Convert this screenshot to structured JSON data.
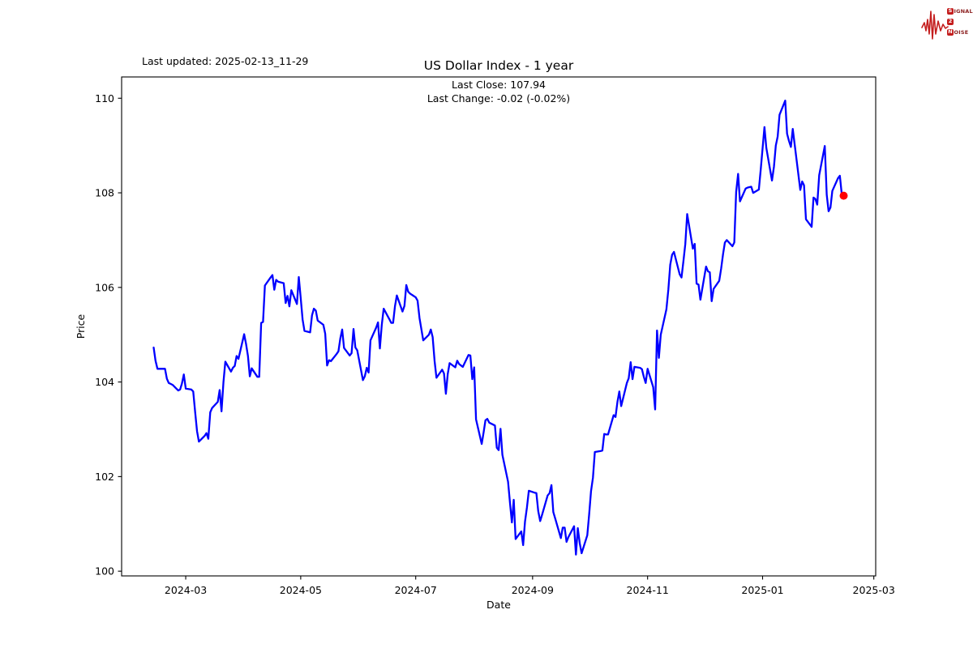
{
  "header": {
    "last_updated": "Last updated: 2025-02-13_11-29"
  },
  "logo": {
    "rows": [
      {
        "boxed": "S",
        "rest": "IGNAL"
      },
      {
        "boxed": "2",
        "rest": ""
      },
      {
        "boxed": "N",
        "rest": "OISE"
      }
    ],
    "accent_color": "#c41e1e"
  },
  "chart_data": {
    "type": "line",
    "title": "US Dollar Index - 1 year",
    "subtitle": [
      "Last Close: 107.94",
      "Last Change: -0.02 (-0.02%)"
    ],
    "xlabel": "Date",
    "ylabel": "Price",
    "grid": false,
    "legend": "none",
    "line_color": "#0000ff",
    "marker_color": "#ff0000",
    "axis_color": "#000000",
    "xlim": [
      "2024-01-27",
      "2025-03-02"
    ],
    "ylim": [
      99.9,
      110.45
    ],
    "y_ticks": [
      100,
      102,
      104,
      106,
      108,
      110
    ],
    "x_ticks": [
      {
        "label": "2024-03",
        "date": "2024-03-01"
      },
      {
        "label": "2024-05",
        "date": "2024-05-01"
      },
      {
        "label": "2024-07",
        "date": "2024-07-01"
      },
      {
        "label": "2024-09",
        "date": "2024-09-01"
      },
      {
        "label": "2024-11",
        "date": "2024-11-01"
      },
      {
        "label": "2025-01",
        "date": "2025-01-01"
      },
      {
        "label": "2025-03",
        "date": "2025-03-01"
      }
    ],
    "series": [
      {
        "name": "US Dollar Index",
        "points": [
          [
            "2024-02-13",
            104.73
          ],
          [
            "2024-02-14",
            104.45
          ],
          [
            "2024-02-15",
            104.28
          ],
          [
            "2024-02-16",
            104.28
          ],
          [
            "2024-02-19",
            104.28
          ],
          [
            "2024-02-20",
            104.07
          ],
          [
            "2024-02-21",
            103.98
          ],
          [
            "2024-02-22",
            103.96
          ],
          [
            "2024-02-23",
            103.94
          ],
          [
            "2024-02-26",
            103.82
          ],
          [
            "2024-02-27",
            103.84
          ],
          [
            "2024-02-28",
            103.97
          ],
          [
            "2024-02-29",
            104.16
          ],
          [
            "2024-03-01",
            103.86
          ],
          [
            "2024-03-04",
            103.84
          ],
          [
            "2024-03-05",
            103.8
          ],
          [
            "2024-03-06",
            103.36
          ],
          [
            "2024-03-07",
            102.96
          ],
          [
            "2024-03-08",
            102.74
          ],
          [
            "2024-03-11",
            102.86
          ],
          [
            "2024-03-12",
            102.92
          ],
          [
            "2024-03-13",
            102.8
          ],
          [
            "2024-03-14",
            103.36
          ],
          [
            "2024-03-15",
            103.45
          ],
          [
            "2024-03-18",
            103.58
          ],
          [
            "2024-03-19",
            103.83
          ],
          [
            "2024-03-20",
            103.38
          ],
          [
            "2024-03-21",
            104.0
          ],
          [
            "2024-03-22",
            104.43
          ],
          [
            "2024-03-25",
            104.22
          ],
          [
            "2024-03-26",
            104.3
          ],
          [
            "2024-03-27",
            104.34
          ],
          [
            "2024-03-28",
            104.55
          ],
          [
            "2024-03-29",
            104.49
          ],
          [
            "2024-04-01",
            105.01
          ],
          [
            "2024-04-02",
            104.8
          ],
          [
            "2024-04-03",
            104.55
          ],
          [
            "2024-04-04",
            104.12
          ],
          [
            "2024-04-05",
            104.29
          ],
          [
            "2024-04-08",
            104.11
          ],
          [
            "2024-04-09",
            104.11
          ],
          [
            "2024-04-10",
            105.25
          ],
          [
            "2024-04-11",
            105.27
          ],
          [
            "2024-04-12",
            106.04
          ],
          [
            "2024-04-15",
            106.21
          ],
          [
            "2024-04-16",
            106.26
          ],
          [
            "2024-04-17",
            105.95
          ],
          [
            "2024-04-18",
            106.16
          ],
          [
            "2024-04-19",
            106.12
          ],
          [
            "2024-04-22",
            106.09
          ],
          [
            "2024-04-23",
            105.67
          ],
          [
            "2024-04-24",
            105.82
          ],
          [
            "2024-04-25",
            105.6
          ],
          [
            "2024-04-26",
            105.94
          ],
          [
            "2024-04-29",
            105.65
          ],
          [
            "2024-04-30",
            106.22
          ],
          [
            "2024-05-01",
            105.77
          ],
          [
            "2024-05-02",
            105.32
          ],
          [
            "2024-05-03",
            105.08
          ],
          [
            "2024-05-06",
            105.05
          ],
          [
            "2024-05-07",
            105.41
          ],
          [
            "2024-05-08",
            105.55
          ],
          [
            "2024-05-09",
            105.51
          ],
          [
            "2024-05-10",
            105.3
          ],
          [
            "2024-05-13",
            105.21
          ],
          [
            "2024-05-14",
            105.02
          ],
          [
            "2024-05-15",
            104.35
          ],
          [
            "2024-05-16",
            104.46
          ],
          [
            "2024-05-17",
            104.44
          ],
          [
            "2024-05-20",
            104.59
          ],
          [
            "2024-05-21",
            104.65
          ],
          [
            "2024-05-22",
            104.92
          ],
          [
            "2024-05-23",
            105.11
          ],
          [
            "2024-05-24",
            104.72
          ],
          [
            "2024-05-27",
            104.56
          ],
          [
            "2024-05-28",
            104.61
          ],
          [
            "2024-05-29",
            105.12
          ],
          [
            "2024-05-30",
            104.73
          ],
          [
            "2024-05-31",
            104.67
          ],
          [
            "2024-06-03",
            104.04
          ],
          [
            "2024-06-04",
            104.12
          ],
          [
            "2024-06-05",
            104.3
          ],
          [
            "2024-06-06",
            104.2
          ],
          [
            "2024-06-07",
            104.88
          ],
          [
            "2024-06-10",
            105.15
          ],
          [
            "2024-06-11",
            105.26
          ],
          [
            "2024-06-12",
            104.71
          ],
          [
            "2024-06-13",
            105.2
          ],
          [
            "2024-06-14",
            105.55
          ],
          [
            "2024-06-17",
            105.33
          ],
          [
            "2024-06-18",
            105.25
          ],
          [
            "2024-06-19",
            105.25
          ],
          [
            "2024-06-20",
            105.6
          ],
          [
            "2024-06-21",
            105.83
          ],
          [
            "2024-06-24",
            105.49
          ],
          [
            "2024-06-25",
            105.61
          ],
          [
            "2024-06-26",
            106.05
          ],
          [
            "2024-06-27",
            105.91
          ],
          [
            "2024-06-28",
            105.87
          ],
          [
            "2024-07-01",
            105.79
          ],
          [
            "2024-07-02",
            105.72
          ],
          [
            "2024-07-03",
            105.35
          ],
          [
            "2024-07-05",
            104.88
          ],
          [
            "2024-07-08",
            105.0
          ],
          [
            "2024-07-09",
            105.11
          ],
          [
            "2024-07-10",
            104.95
          ],
          [
            "2024-07-11",
            104.44
          ],
          [
            "2024-07-12",
            104.09
          ],
          [
            "2024-07-15",
            104.26
          ],
          [
            "2024-07-16",
            104.18
          ],
          [
            "2024-07-17",
            103.75
          ],
          [
            "2024-07-18",
            104.17
          ],
          [
            "2024-07-19",
            104.4
          ],
          [
            "2024-07-22",
            104.31
          ],
          [
            "2024-07-23",
            104.45
          ],
          [
            "2024-07-24",
            104.38
          ],
          [
            "2024-07-25",
            104.35
          ],
          [
            "2024-07-26",
            104.32
          ],
          [
            "2024-07-29",
            104.57
          ],
          [
            "2024-07-30",
            104.56
          ],
          [
            "2024-07-31",
            104.06
          ],
          [
            "2024-08-01",
            104.31
          ],
          [
            "2024-08-02",
            103.21
          ],
          [
            "2024-08-05",
            102.69
          ],
          [
            "2024-08-06",
            102.93
          ],
          [
            "2024-08-07",
            103.19
          ],
          [
            "2024-08-08",
            103.22
          ],
          [
            "2024-08-09",
            103.14
          ],
          [
            "2024-08-12",
            103.08
          ],
          [
            "2024-08-13",
            102.61
          ],
          [
            "2024-08-14",
            102.56
          ],
          [
            "2024-08-15",
            103.01
          ],
          [
            "2024-08-16",
            102.46
          ],
          [
            "2024-08-19",
            101.89
          ],
          [
            "2024-08-20",
            101.44
          ],
          [
            "2024-08-21",
            101.03
          ],
          [
            "2024-08-22",
            101.51
          ],
          [
            "2024-08-23",
            100.68
          ],
          [
            "2024-08-26",
            100.84
          ],
          [
            "2024-08-27",
            100.55
          ],
          [
            "2024-08-28",
            101.05
          ],
          [
            "2024-08-29",
            101.35
          ],
          [
            "2024-08-30",
            101.7
          ],
          [
            "2024-09-02",
            101.66
          ],
          [
            "2024-09-03",
            101.65
          ],
          [
            "2024-09-04",
            101.27
          ],
          [
            "2024-09-05",
            101.06
          ],
          [
            "2024-09-06",
            101.19
          ],
          [
            "2024-09-09",
            101.6
          ],
          [
            "2024-09-10",
            101.65
          ],
          [
            "2024-09-11",
            101.82
          ],
          [
            "2024-09-12",
            101.25
          ],
          [
            "2024-09-13",
            101.11
          ],
          [
            "2024-09-16",
            100.7
          ],
          [
            "2024-09-17",
            100.92
          ],
          [
            "2024-09-18",
            100.92
          ],
          [
            "2024-09-19",
            100.62
          ],
          [
            "2024-09-20",
            100.72
          ],
          [
            "2024-09-23",
            100.95
          ],
          [
            "2024-09-24",
            100.35
          ],
          [
            "2024-09-25",
            100.91
          ],
          [
            "2024-09-26",
            100.59
          ],
          [
            "2024-09-27",
            100.38
          ],
          [
            "2024-09-30",
            100.76
          ],
          [
            "2024-10-01",
            101.2
          ],
          [
            "2024-10-02",
            101.69
          ],
          [
            "2024-10-03",
            101.98
          ],
          [
            "2024-10-04",
            102.52
          ],
          [
            "2024-10-07",
            102.54
          ],
          [
            "2024-10-08",
            102.55
          ],
          [
            "2024-10-09",
            102.9
          ],
          [
            "2024-10-10",
            102.89
          ],
          [
            "2024-10-11",
            102.89
          ],
          [
            "2024-10-14",
            103.3
          ],
          [
            "2024-10-15",
            103.26
          ],
          [
            "2024-10-16",
            103.58
          ],
          [
            "2024-10-17",
            103.8
          ],
          [
            "2024-10-18",
            103.49
          ],
          [
            "2024-10-21",
            103.98
          ],
          [
            "2024-10-22",
            104.08
          ],
          [
            "2024-10-23",
            104.42
          ],
          [
            "2024-10-24",
            104.06
          ],
          [
            "2024-10-25",
            104.32
          ],
          [
            "2024-10-28",
            104.3
          ],
          [
            "2024-10-29",
            104.27
          ],
          [
            "2024-10-30",
            104.11
          ],
          [
            "2024-10-31",
            103.98
          ],
          [
            "2024-11-01",
            104.28
          ],
          [
            "2024-11-04",
            103.89
          ],
          [
            "2024-11-05",
            103.42
          ],
          [
            "2024-11-06",
            105.09
          ],
          [
            "2024-11-07",
            104.51
          ],
          [
            "2024-11-08",
            105.0
          ],
          [
            "2024-11-11",
            105.54
          ],
          [
            "2024-11-12",
            105.96
          ],
          [
            "2024-11-13",
            106.48
          ],
          [
            "2024-11-14",
            106.69
          ],
          [
            "2024-11-15",
            106.75
          ],
          [
            "2024-11-18",
            106.28
          ],
          [
            "2024-11-19",
            106.21
          ],
          [
            "2024-11-20",
            106.56
          ],
          [
            "2024-11-21",
            106.92
          ],
          [
            "2024-11-22",
            107.55
          ],
          [
            "2024-11-25",
            106.82
          ],
          [
            "2024-11-26",
            106.92
          ],
          [
            "2024-11-27",
            106.08
          ],
          [
            "2024-11-28",
            106.06
          ],
          [
            "2024-11-29",
            105.74
          ],
          [
            "2024-12-02",
            106.44
          ],
          [
            "2024-12-03",
            106.34
          ],
          [
            "2024-12-04",
            106.32
          ],
          [
            "2024-12-05",
            105.71
          ],
          [
            "2024-12-06",
            105.97
          ],
          [
            "2024-12-09",
            106.14
          ],
          [
            "2024-12-10",
            106.4
          ],
          [
            "2024-12-11",
            106.7
          ],
          [
            "2024-12-12",
            106.95
          ],
          [
            "2024-12-13",
            107.0
          ],
          [
            "2024-12-16",
            106.87
          ],
          [
            "2024-12-17",
            106.95
          ],
          [
            "2024-12-18",
            108.02
          ],
          [
            "2024-12-19",
            108.4
          ],
          [
            "2024-12-20",
            107.82
          ],
          [
            "2024-12-23",
            108.09
          ],
          [
            "2024-12-24",
            108.11
          ],
          [
            "2024-12-26",
            108.13
          ],
          [
            "2024-12-27",
            108.0
          ],
          [
            "2024-12-30",
            108.07
          ],
          [
            "2024-12-31",
            108.49
          ],
          [
            "2025-01-02",
            109.39
          ],
          [
            "2025-01-03",
            108.95
          ],
          [
            "2025-01-06",
            108.26
          ],
          [
            "2025-01-07",
            108.55
          ],
          [
            "2025-01-08",
            109.0
          ],
          [
            "2025-01-09",
            109.19
          ],
          [
            "2025-01-10",
            109.65
          ],
          [
            "2025-01-13",
            109.95
          ],
          [
            "2025-01-14",
            109.25
          ],
          [
            "2025-01-15",
            109.1
          ],
          [
            "2025-01-16",
            108.97
          ],
          [
            "2025-01-17",
            109.35
          ],
          [
            "2025-01-21",
            108.06
          ],
          [
            "2025-01-22",
            108.24
          ],
          [
            "2025-01-23",
            108.16
          ],
          [
            "2025-01-24",
            107.44
          ],
          [
            "2025-01-27",
            107.28
          ],
          [
            "2025-01-28",
            107.9
          ],
          [
            "2025-01-29",
            107.87
          ],
          [
            "2025-01-30",
            107.75
          ],
          [
            "2025-01-31",
            108.37
          ],
          [
            "2025-02-03",
            108.99
          ],
          [
            "2025-02-04",
            107.96
          ],
          [
            "2025-02-05",
            107.61
          ],
          [
            "2025-02-06",
            107.69
          ],
          [
            "2025-02-07",
            108.04
          ],
          [
            "2025-02-10",
            108.31
          ],
          [
            "2025-02-11",
            108.36
          ],
          [
            "2025-02-12",
            107.96
          ],
          [
            "2025-02-13",
            107.94
          ]
        ]
      }
    ]
  }
}
